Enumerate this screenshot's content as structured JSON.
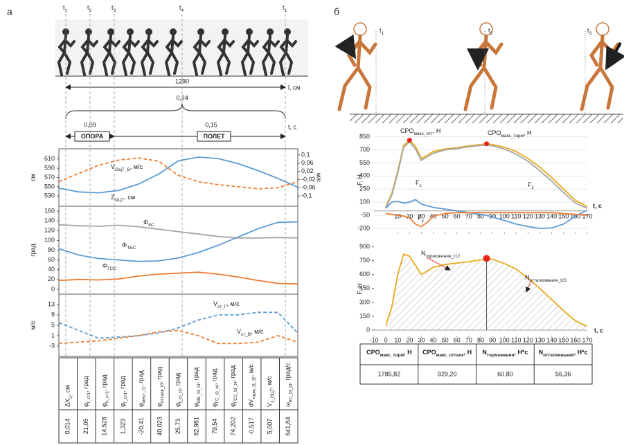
{
  "panel_a": {
    "label": "а",
    "time_marks": [
      [
        "t",
        "1"
      ],
      [
        "t",
        "2"
      ],
      [
        "t",
        "3"
      ],
      [
        "t",
        "4"
      ],
      [
        "t",
        "1"
      ]
    ],
    "distance": "1290",
    "distance_unit": "l, см",
    "total_time": "0,24",
    "support_time": "0,09",
    "flight_time": "0,15",
    "time_unit": "t, с",
    "support": "ОПОРА",
    "flight": "ПОЛЕТ",
    "table": {
      "headers": [
        [
          "ΔX",
          "ц",
          ", см"
        ],
        [
          "φ",
          "t_ст1",
          ", град"
        ],
        [
          "φ",
          "h_ст1",
          ", град"
        ],
        [
          "φ",
          "f_ст1",
          ", град"
        ],
        [
          "φ",
          "мест_t1",
          ", град"
        ],
        [
          "φ",
          "отталк_t3",
          ", град"
        ],
        [
          "φ",
          "t_t2_t3",
          ", град"
        ],
        [
          "φ",
          "МБ_t3_t4",
          ", град"
        ],
        [
          "φ",
          "ГС_t3_t4",
          ", град"
        ],
        [
          "φ",
          "ГСС_t3_t4",
          ", град"
        ],
        [
          "dV",
          "торм_t1_t2",
          ", м/с"
        ],
        [
          "V",
          "x_ОЦТ",
          ", м/с"
        ],
        [
          "ω",
          "КС_t3_t4",
          ", град/с"
        ]
      ],
      "values": [
        "0,014",
        "21,05",
        "14,528",
        "1,323",
        "-20,41",
        "40,023",
        "25,73",
        "82,981",
        "79,54",
        "74,202",
        "-0,517",
        "5,007",
        "641,84"
      ]
    }
  },
  "panel_b": {
    "label": "б",
    "time_marks": [
      [
        "t",
        "1"
      ],
      [
        "t",
        "2"
      ],
      [
        "t",
        "3"
      ]
    ],
    "table": {
      "headers": [
        [
          "CPO",
          "макс_торм",
          ", H"
        ],
        [
          "CPO",
          "макс_отталк",
          ", H"
        ],
        [
          "N",
          "торможения",
          ", H*c"
        ],
        [
          "N",
          "отталкивания",
          ", H*c"
        ]
      ],
      "values": [
        "1785,82",
        "929,20",
        "60,80",
        "56,36"
      ]
    }
  },
  "chart_data": [
    {
      "type": "line",
      "frame": true,
      "ylabel": "см",
      "y2label": "м/с",
      "categories": [
        null,
        null,
        null,
        null,
        null,
        null,
        null,
        null,
        null,
        null,
        null,
        null,
        null
      ],
      "ylim": [
        508,
        632
      ],
      "yticks": [
        530,
        550,
        570,
        590,
        610
      ],
      "y2lim": [
        -0.15,
        0.13
      ],
      "y2ticks": [
        {
          "value": 0.1,
          "label": "0,1"
        },
        {
          "value": 0.06,
          "label": "0,06"
        },
        {
          "value": 0.02,
          "label": "0,02"
        },
        {
          "value": -0.02,
          "label": "-0,02"
        },
        {
          "value": -0.06,
          "label": "-0,06"
        },
        {
          "value": -0.1,
          "label": "-0,1"
        }
      ],
      "series": [
        {
          "name": [
            "Z",
            "ОЦТ",
            ", см"
          ],
          "color": "#5b9bd5",
          "dash": false,
          "values": [
            547,
            539,
            537,
            542,
            556,
            577,
            606,
            614,
            611,
            600,
            585,
            568,
            549
          ]
        },
        {
          "name": [
            "V",
            "ОЦТ_В",
            ", м/с"
          ],
          "color": "#ed7d31",
          "dash": true,
          "axis": "y2",
          "values": [
            -0.03,
            0.01,
            0.05,
            0.075,
            0.085,
            0.07,
            0.0,
            -0.03,
            -0.045,
            -0.055,
            -0.065,
            -0.06,
            -0.03
          ]
        }
      ]
    },
    {
      "type": "line",
      "frame": true,
      "ylabel": "град",
      "categories": [
        null,
        null,
        null,
        null,
        null,
        null,
        null,
        null,
        null,
        null,
        null,
        null,
        null
      ],
      "ylim": [
        -10,
        170
      ],
      "yticks": [
        0,
        20,
        40,
        60,
        80,
        100,
        120,
        140,
        160
      ],
      "series": [
        {
          "name": [
            "Φ",
            "КС",
            ""
          ],
          "color": "#a5a5a5",
          "dash": false,
          "values": [
            132,
            130,
            129,
            131,
            128,
            123,
            118,
            113,
            108,
            105,
            105,
            106,
            105
          ]
        },
        {
          "name": [
            "Φ",
            "ТБС",
            ""
          ],
          "color": "#5b9bd5",
          "dash": false,
          "values": [
            83,
            70,
            63,
            60,
            57,
            58,
            64,
            75,
            90,
            107,
            124,
            137,
            138
          ]
        },
        {
          "name": [
            "Φ",
            "ГСС",
            ""
          ],
          "color": "#ed7d31",
          "dash": false,
          "values": [
            18,
            20,
            19,
            21,
            27,
            31,
            33,
            35,
            31,
            25,
            18,
            12,
            11
          ]
        }
      ]
    },
    {
      "type": "line",
      "frame": true,
      "ylabel": "м/с",
      "categories": [
        null,
        null,
        null,
        null,
        null,
        null,
        null,
        null,
        null,
        null,
        null,
        null,
        null
      ],
      "ylim": [
        -7,
        17
      ],
      "yticks": [
        -3,
        1,
        5,
        9,
        13
      ],
      "series": [
        {
          "name": [
            "V",
            "ст_Г",
            ", м/с"
          ],
          "color": "#5b9bd5",
          "dash": true,
          "values": [
            6,
            3,
            0,
            0.5,
            1,
            2,
            4,
            7,
            9,
            9,
            10,
            10,
            2
          ]
        },
        {
          "name": [
            "V",
            "ст_В",
            ", м/с"
          ],
          "color": "#ed7d31",
          "dash": true,
          "values": [
            -2,
            -1.5,
            -1,
            0,
            1,
            2.5,
            3,
            1,
            -2,
            -2,
            -1.5,
            1,
            -1.5
          ]
        }
      ]
    },
    {
      "type": "line",
      "frame": false,
      "grid": true,
      "ylabel": "F, H",
      "xlabel": "t, c",
      "x": [
        0,
        5,
        10,
        15,
        20,
        25,
        30,
        35,
        40,
        50,
        60,
        70,
        80,
        85,
        90,
        100,
        110,
        120,
        130,
        140,
        150,
        160,
        170
      ],
      "xlim": [
        -10,
        170
      ],
      "xticks": [
        10,
        20,
        30,
        40,
        50,
        60,
        70,
        80,
        90,
        100,
        110,
        120,
        130,
        140,
        150,
        160,
        170
      ],
      "ylim": [
        -240,
        950
      ],
      "yticks": [
        -200,
        -50,
        100,
        250,
        400,
        550,
        700,
        850
      ],
      "series": [
        {
          "color": "#e8a817",
          "dash": false,
          "values": [
            50,
            200,
            450,
            750,
            810,
            740,
            600,
            640,
            680,
            710,
            725,
            745,
            760,
            770,
            760,
            730,
            680,
            600,
            500,
            380,
            250,
            120,
            50
          ]
        },
        {
          "name": [
            "F",
            "z",
            ""
          ],
          "color": "#a5a5a5",
          "dash": false,
          "values": [
            40,
            180,
            430,
            730,
            790,
            710,
            580,
            620,
            660,
            700,
            715,
            735,
            750,
            755,
            745,
            710,
            650,
            570,
            460,
            340,
            210,
            90,
            30
          ]
        },
        {
          "name": [
            "F",
            "x",
            ""
          ],
          "color": "#5b9bd5",
          "dash": false,
          "values": [
            30,
            100,
            110,
            90,
            100,
            130,
            80,
            60,
            40,
            20,
            0,
            -20,
            -40,
            -50,
            -70,
            -110,
            -150,
            -180,
            -200,
            -195,
            -150,
            -60,
            10
          ]
        },
        {
          "name": [
            "F",
            "y",
            ""
          ],
          "color": "#ed7d31",
          "dash": false,
          "values": [
            -30,
            -40,
            -50,
            -60,
            -80,
            -150,
            -180,
            -130,
            -60,
            -30,
            -20,
            -20,
            -20,
            -20,
            -20,
            -20,
            -20,
            -20,
            -20,
            -20,
            -30,
            -40,
            -50
          ]
        }
      ],
      "annotations": [
        {
          "text": [
            "CPO",
            "макс_отт",
            ", H"
          ],
          "x": 20,
          "y": 810
        },
        {
          "text": [
            "CPO",
            "макс_торм",
            ", H"
          ],
          "x": 85,
          "y": 770
        }
      ]
    },
    {
      "type": "line",
      "frame": false,
      "grid": false,
      "hatched": true,
      "ylabel": "F, H",
      "xlabel": "t, c",
      "x": [
        0,
        5,
        10,
        15,
        20,
        25,
        30,
        35,
        40,
        50,
        60,
        70,
        80,
        85,
        90,
        100,
        110,
        120,
        130,
        140,
        150,
        160,
        170
      ],
      "xlim": [
        -10,
        170
      ],
      "xticks": [
        -10,
        0,
        10,
        20,
        30,
        40,
        50,
        60,
        70,
        80,
        90,
        100,
        110,
        120,
        130,
        140,
        150,
        160,
        170
      ],
      "ylim": [
        -60,
        950
      ],
      "yticks": [
        0,
        150,
        300,
        450,
        600,
        750,
        900
      ],
      "series": [
        {
          "color": "#e8a817",
          "dash": false,
          "values": [
            50,
            250,
            600,
            820,
            800,
            700,
            600,
            640,
            680,
            710,
            725,
            740,
            760,
            775,
            765,
            720,
            660,
            560,
            450,
            330,
            210,
            100,
            40
          ]
        }
      ],
      "annotations": [
        {
          "x": 85,
          "y": 775
        }
      ],
      "area_labels": [
        [
          "N",
          "торможение_t12",
          ""
        ],
        [
          "N",
          "отталкивания_t23",
          ""
        ]
      ]
    }
  ]
}
